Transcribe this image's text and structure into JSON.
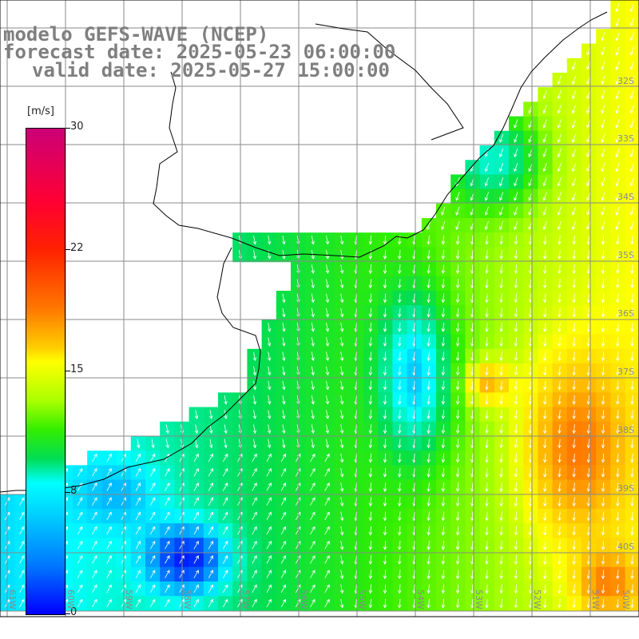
{
  "title": {
    "line1": "modelo GEFS-WAVE (NCEP)",
    "line2": "forecast date: 2025-05-23 06:00:00",
    "line3": "valid date: 2025-05-27 15:00:00"
  },
  "colorbar": {
    "unit": "[m/s]",
    "ticks": [
      "30",
      "22",
      "15",
      "8",
      "0"
    ],
    "tick_values": [
      30,
      22,
      15,
      8,
      0
    ]
  },
  "lat_labels": [
    "32S",
    "33S",
    "34S",
    "35S",
    "36S",
    "37S",
    "38S",
    "39S",
    "40S"
  ],
  "lon_labels": [
    "61W",
    "60W",
    "59W",
    "58W",
    "57W",
    "56W",
    "55W",
    "54W",
    "53W",
    "52W",
    "51W",
    "50W"
  ],
  "colors": {
    "land": "#ffffff",
    "grid": "#8a8a8a",
    "coast": "#000000",
    "arrows": "#ffffff"
  }
}
